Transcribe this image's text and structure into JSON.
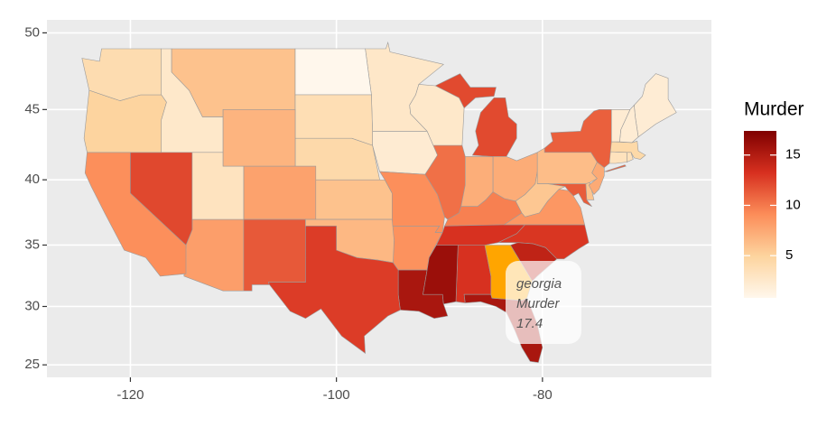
{
  "chart_data": {
    "type": "choropleth",
    "projection": "mercator",
    "xlim": [
      -128.1,
      -63.6
    ],
    "ylim": [
      23.9,
      50.8
    ],
    "xticks": [
      -120,
      -100,
      -80
    ],
    "yticks": [
      25,
      30,
      35,
      40,
      45,
      50
    ],
    "grid": true,
    "values": [
      13.2,
      8.1,
      8.8,
      9.0,
      7.9,
      3.3,
      5.9,
      15.4,
      17.4,
      2.6,
      10.4,
      7.2,
      2.2,
      6.0,
      9.7,
      15.4,
      2.1,
      11.3,
      4.4,
      12.1,
      2.7,
      16.1,
      9.0,
      6.0,
      4.3,
      12.2,
      2.1,
      7.4,
      11.4,
      11.1,
      13.0,
      0.8,
      7.3,
      6.6,
      4.9,
      6.3,
      3.4,
      14.4,
      3.8,
      13.2,
      12.7,
      3.2,
      2.2,
      8.5,
      4.0,
      5.7,
      2.6,
      6.8
    ],
    "color_scale": {
      "title": "Murder",
      "limits": [
        0.8,
        17.4
      ],
      "ticks": [
        5,
        10,
        15
      ],
      "colors": [
        "#FFF7EC",
        "#FDD49E",
        "#FC8D59",
        "#D7301F",
        "#7F0000"
      ]
    },
    "highlight_color": "#FFA500",
    "tooltip": {
      "region": "georgia",
      "variable": "Murder",
      "value": 17.4
    }
  }
}
